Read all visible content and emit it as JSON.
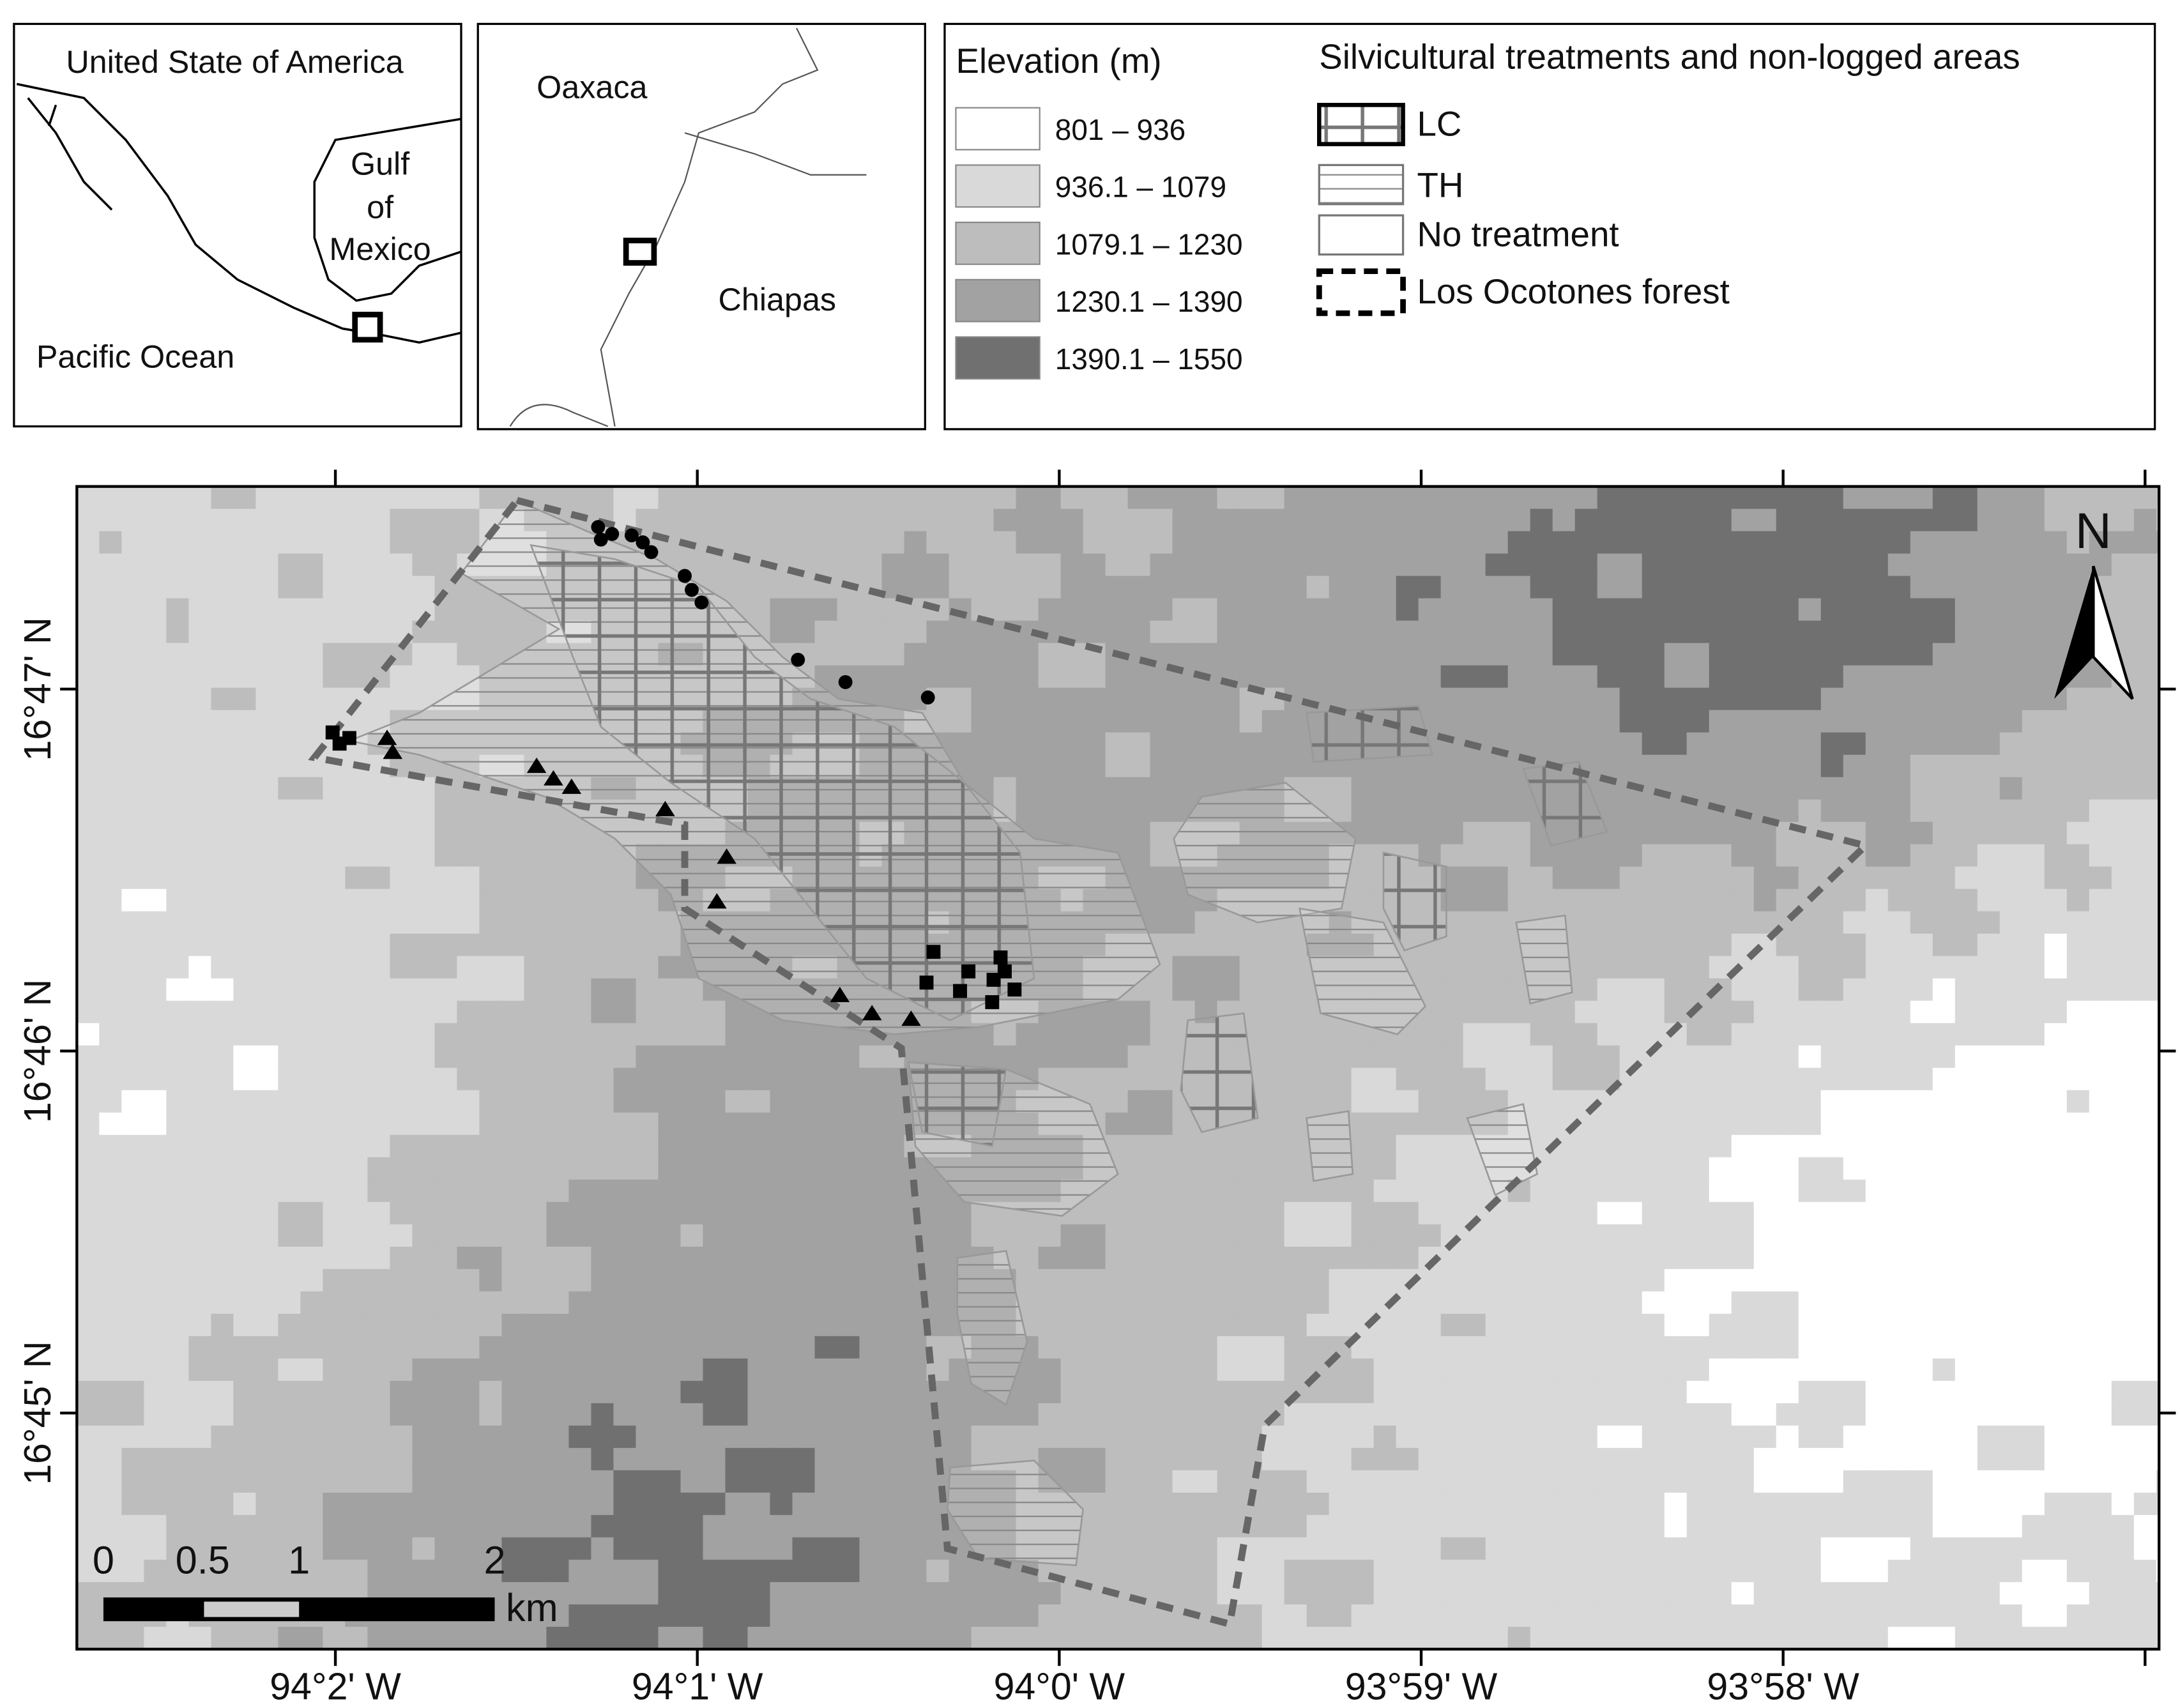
{
  "inset_country": {
    "labels": [
      "United State of America",
      "Gulf",
      "of",
      "Mexico",
      "Pacific Ocean"
    ]
  },
  "inset_state": {
    "labels": [
      "Oaxaca",
      "Chiapas"
    ]
  },
  "legend_elevation": {
    "title": "Elevation (m)",
    "classes": [
      "801 – 936",
      "936.1 – 1079",
      "1079.1 – 1230",
      "1230.1 – 1390",
      "1390.1 – 1550"
    ]
  },
  "legend_treatments": {
    "title": "Silvicultural treatments and non-logged areas",
    "items": [
      "LC",
      "TH",
      "No treatment",
      "Los Ocotones forest"
    ]
  },
  "map": {
    "x_ticks": [
      "94°2' W",
      "94°1' W",
      "94°0' W",
      "93°59' W",
      "93°58' W"
    ],
    "y_ticks": [
      "16°47' N",
      "16°46' N",
      "16°45' N"
    ],
    "north": "N",
    "scale_bar": [
      "0",
      "0.5",
      "1",
      "2"
    ],
    "scale_unit": "km"
  }
}
